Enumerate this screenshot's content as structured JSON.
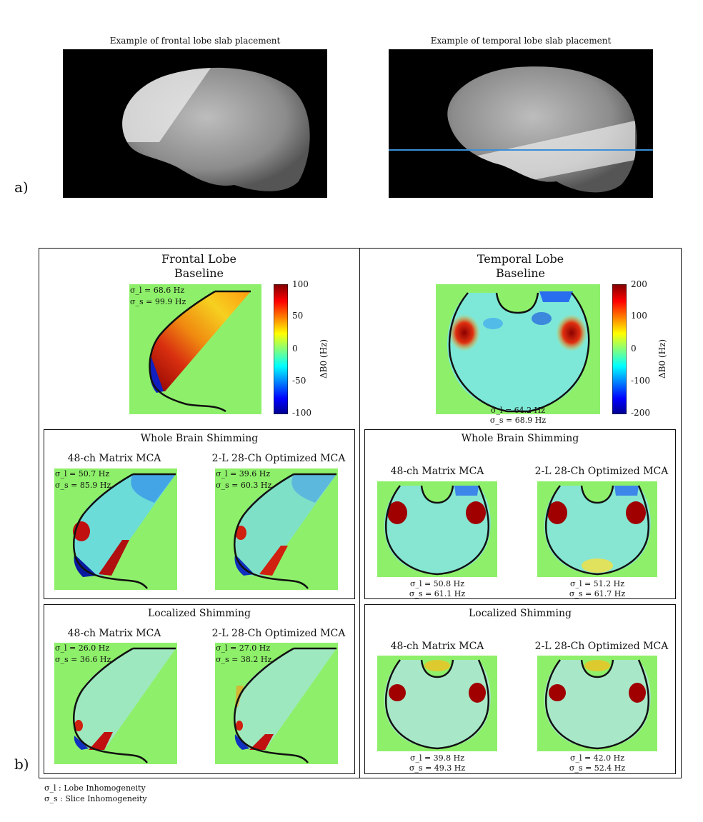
{
  "panel_a": {
    "label": "a)",
    "left_title": "Example of frontal lobe slab placement",
    "right_title": "Example of temporal lobe slab placement"
  },
  "panel_b": {
    "label": "b)",
    "frontal": {
      "title": "Frontal Lobe",
      "baseline_label": "Baseline",
      "baseline_sigma_l": "σ_l = 68.6 Hz",
      "baseline_sigma_s": "σ_s = 99.9 Hz",
      "colorbar": {
        "ticks": [
          "100",
          "50",
          "0",
          "-50",
          "-100"
        ],
        "label": "ΔB0 (Hz)"
      },
      "whole_brain": {
        "title": "Whole Brain Shimming",
        "left_label": "48-ch Matrix MCA",
        "right_label": "2-L 28-Ch Optimized MCA",
        "left_sigma_l": "σ_l = 50.7 Hz",
        "left_sigma_s": "σ_s = 85.9 Hz",
        "right_sigma_l": "σ_l = 39.6 Hz",
        "right_sigma_s": "σ_s = 60.3 Hz"
      },
      "localized": {
        "title": "Localized Shimming",
        "left_label": "48-ch Matrix MCA",
        "right_label": "2-L 28-Ch Optimized MCA",
        "left_sigma_l": "σ_l = 26.0 Hz",
        "left_sigma_s": "σ_s = 36.6 Hz",
        "right_sigma_l": "σ_l = 27.0 Hz",
        "right_sigma_s": "σ_s = 38.2 Hz"
      }
    },
    "temporal": {
      "title": "Temporal Lobe",
      "baseline_label": "Baseline",
      "baseline_sigma_l": "σ_l = 64.2 Hz",
      "baseline_sigma_s": "σ_s = 68.9 Hz",
      "colorbar": {
        "ticks": [
          "200",
          "100",
          "0",
          "-100",
          "-200"
        ],
        "label": "ΔB0 (Hz)"
      },
      "whole_brain": {
        "title": "Whole Brain Shimming",
        "left_label": "48-ch Matrix MCA",
        "right_label": "2-L 28-Ch Optimized MCA",
        "left_sigma_l": "σ_l = 50.8 Hz",
        "left_sigma_s": "σ_s = 61.1 Hz",
        "right_sigma_l": "σ_l = 51.2 Hz",
        "right_sigma_s": "σ_s = 61.7 Hz"
      },
      "localized": {
        "title": "Localized Shimming",
        "left_label": "48-ch Matrix MCA",
        "right_label": "2-L 28-Ch Optimized MCA",
        "left_sigma_l": "σ_l = 39.8 Hz",
        "left_sigma_s": "σ_s = 49.3 Hz",
        "right_sigma_l": "σ_l = 42.0 Hz",
        "right_sigma_s": "σ_s = 52.4 Hz"
      }
    }
  },
  "legend": {
    "sigma_l": "σ_l : Lobe Inhomogeneity",
    "sigma_s": "σ_s : Slice Inhomogeneity"
  },
  "colors": {
    "background_green": "#8ef06a",
    "contour": "#111111",
    "slab_line": "#3a8fd8"
  }
}
